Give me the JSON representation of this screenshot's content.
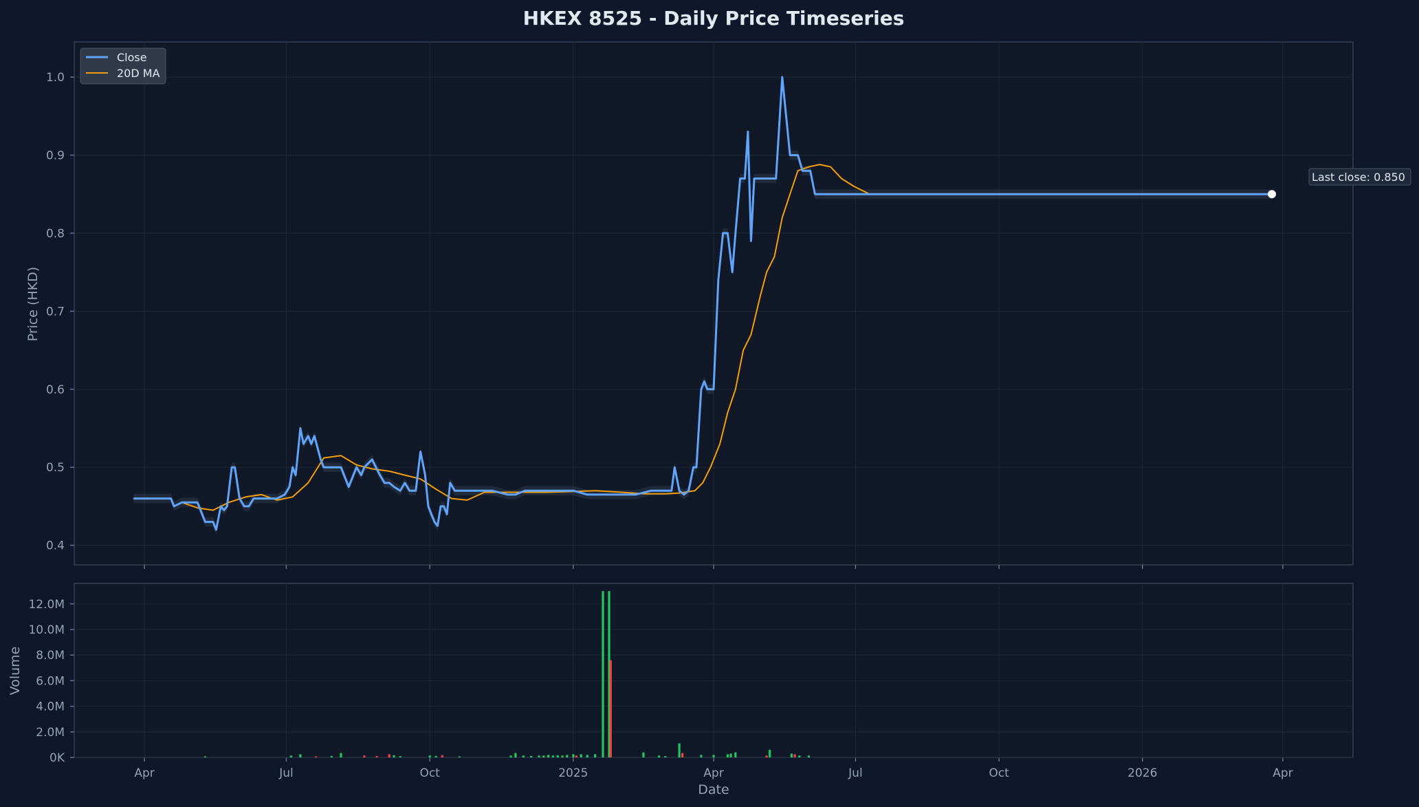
{
  "colors": {
    "background": "#0f172a",
    "panel": "#111827",
    "grid": "#1f2937",
    "close": "#60a5fa",
    "ma": "#f59e0b",
    "range": "#334155",
    "volume_up": "#22c55e",
    "volume_down": "#ef4444"
  },
  "chart_data": [
    {
      "type": "line",
      "title": "HKEX 8525 - Daily Price Timeseries",
      "ylabel": "Price (HKD)",
      "ylim": [
        0.375,
        1.045
      ],
      "yticks": [
        "0.4",
        "0.5",
        "0.6",
        "0.7",
        "0.8",
        "0.9",
        "1.0"
      ],
      "grid": true,
      "legend_position": "top-left",
      "series": [
        {
          "name": "Close",
          "x": [
            "2024-03-25",
            "2024-04-10",
            "2024-04-18",
            "2024-04-20",
            "2024-04-25",
            "2024-05-05",
            "2024-05-08",
            "2024-05-10",
            "2024-05-15",
            "2024-05-17",
            "2024-05-20",
            "2024-05-22",
            "2024-05-24",
            "2024-05-27",
            "2024-05-29",
            "2024-06-01",
            "2024-06-04",
            "2024-06-07",
            "2024-06-10",
            "2024-06-15",
            "2024-06-20",
            "2024-06-25",
            "2024-06-30",
            "2024-07-03",
            "2024-07-05",
            "2024-07-07",
            "2024-07-10",
            "2024-07-12",
            "2024-07-15",
            "2024-07-17",
            "2024-07-19",
            "2024-07-21",
            "2024-07-23",
            "2024-07-25",
            "2024-07-28",
            "2024-07-31",
            "2024-08-05",
            "2024-08-10",
            "2024-08-15",
            "2024-08-18",
            "2024-08-20",
            "2024-08-25",
            "2024-08-30",
            "2024-09-02",
            "2024-09-05",
            "2024-09-08",
            "2024-09-12",
            "2024-09-15",
            "2024-09-18",
            "2024-09-20",
            "2024-09-22",
            "2024-09-25",
            "2024-09-28",
            "2024-09-30",
            "2024-10-02",
            "2024-10-04",
            "2024-10-06",
            "2024-10-08",
            "2024-10-10",
            "2024-10-12",
            "2024-10-14",
            "2024-10-17",
            "2024-10-20",
            "2024-10-22",
            "2024-10-25",
            "2024-11-01",
            "2024-11-10",
            "2024-11-20",
            "2024-11-25",
            "2024-12-01",
            "2024-12-10",
            "2024-12-20",
            "2025-01-01",
            "2025-01-10",
            "2025-01-20",
            "2025-02-01",
            "2025-02-10",
            "2025-02-20",
            "2025-03-01",
            "2025-03-05",
            "2025-03-07",
            "2025-03-10",
            "2025-03-13",
            "2025-03-16",
            "2025-03-19",
            "2025-03-21",
            "2025-03-24",
            "2025-03-26",
            "2025-03-28",
            "2025-04-01",
            "2025-04-04",
            "2025-04-07",
            "2025-04-10",
            "2025-04-13",
            "2025-04-15",
            "2025-04-18",
            "2025-04-21",
            "2025-04-23",
            "2025-04-25",
            "2025-04-27",
            "2025-04-29",
            "2025-05-01",
            "2025-05-04",
            "2025-05-06",
            "2025-05-08",
            "2025-05-11",
            "2025-05-15",
            "2025-05-20",
            "2025-05-25",
            "2025-05-28",
            "2025-05-31",
            "2025-06-02",
            "2025-06-05",
            "2025-06-08",
            "2025-06-11",
            "2025-06-15",
            "2025-06-20",
            "2025-06-25",
            "2025-06-30",
            "2025-07-05",
            "2025-08-01",
            "2025-10-01",
            "2025-12-01",
            "2026-01-01",
            "2026-03-25"
          ],
          "values": [
            0.46,
            0.46,
            0.46,
            0.45,
            0.455,
            0.455,
            0.44,
            0.43,
            0.43,
            0.42,
            0.45,
            0.445,
            0.45,
            0.5,
            0.5,
            0.46,
            0.45,
            0.45,
            0.46,
            0.46,
            0.46,
            0.46,
            0.465,
            0.475,
            0.5,
            0.49,
            0.55,
            0.53,
            0.54,
            0.53,
            0.54,
            0.525,
            0.51,
            0.5,
            0.5,
            0.5,
            0.5,
            0.475,
            0.5,
            0.49,
            0.5,
            0.51,
            0.49,
            0.48,
            0.48,
            0.475,
            0.47,
            0.48,
            0.47,
            0.47,
            0.47,
            0.52,
            0.49,
            0.45,
            0.44,
            0.43,
            0.425,
            0.45,
            0.45,
            0.44,
            0.48,
            0.47,
            0.47,
            0.47,
            0.47,
            0.47,
            0.47,
            0.465,
            0.465,
            0.47,
            0.47,
            0.47,
            0.47,
            0.465,
            0.465,
            0.465,
            0.465,
            0.47,
            0.47,
            0.47,
            0.5,
            0.47,
            0.465,
            0.47,
            0.5,
            0.5,
            0.6,
            0.61,
            0.6,
            0.6,
            0.74,
            0.8,
            0.8,
            0.75,
            0.8,
            0.87,
            0.87,
            0.93,
            0.79,
            0.87,
            0.87,
            0.87,
            0.87,
            0.87,
            0.87,
            0.87,
            1.0,
            0.9,
            0.9,
            0.88,
            0.88,
            0.88,
            0.85,
            0.85,
            0.85,
            0.85,
            0.85,
            0.85,
            0.85,
            0.85,
            0.85,
            0.85,
            0.85,
            0.85,
            0.85
          ]
        },
        {
          "name": "20D MA",
          "x": [
            "2024-04-25",
            "2024-05-05",
            "2024-05-15",
            "2024-05-25",
            "2024-06-05",
            "2024-06-15",
            "2024-06-25",
            "2024-07-05",
            "2024-07-15",
            "2024-07-25",
            "2024-08-05",
            "2024-08-15",
            "2024-08-25",
            "2024-09-05",
            "2024-09-15",
            "2024-09-25",
            "2024-10-05",
            "2024-10-15",
            "2024-10-25",
            "2024-11-05",
            "2024-11-15",
            "2024-12-01",
            "2024-12-15",
            "2025-01-01",
            "2025-01-15",
            "2025-02-01",
            "2025-02-15",
            "2025-03-01",
            "2025-03-10",
            "2025-03-20",
            "2025-03-25",
            "2025-03-30",
            "2025-04-05",
            "2025-04-10",
            "2025-04-15",
            "2025-04-20",
            "2025-04-25",
            "2025-05-01",
            "2025-05-05",
            "2025-05-10",
            "2025-05-15",
            "2025-05-20",
            "2025-05-25",
            "2025-06-01",
            "2025-06-08",
            "2025-06-15",
            "2025-06-22",
            "2025-06-30",
            "2025-07-10",
            "2025-08-01",
            "2025-10-01",
            "2026-01-01",
            "2026-03-25"
          ],
          "values": [
            0.455,
            0.448,
            0.445,
            0.455,
            0.462,
            0.465,
            0.458,
            0.462,
            0.48,
            0.512,
            0.515,
            0.503,
            0.498,
            0.495,
            0.49,
            0.485,
            0.472,
            0.46,
            0.458,
            0.468,
            0.468,
            0.468,
            0.468,
            0.469,
            0.47,
            0.468,
            0.466,
            0.466,
            0.467,
            0.47,
            0.48,
            0.5,
            0.53,
            0.57,
            0.6,
            0.65,
            0.67,
            0.72,
            0.75,
            0.77,
            0.82,
            0.85,
            0.88,
            0.885,
            0.888,
            0.885,
            0.87,
            0.86,
            0.85,
            0.85,
            0.85,
            0.85,
            0.85
          ]
        }
      ],
      "annotation": "Last close: 0.850"
    },
    {
      "type": "bar",
      "ylabel": "Volume",
      "xlabel": "Date",
      "ylim": [
        0,
        13600000
      ],
      "yticks": [
        "0K",
        "2.0M",
        "4.0M",
        "6.0M",
        "8.0M",
        "10.0M",
        "12.0M"
      ],
      "xticks": [
        "Apr",
        "Jul",
        "Oct",
        "2025",
        "Apr",
        "Jul",
        "Oct",
        "2026",
        "Apr"
      ],
      "bars": [
        {
          "x": "2024-05-10",
          "value": 80000,
          "dir": "up"
        },
        {
          "x": "2024-07-04",
          "value": 150000,
          "dir": "up"
        },
        {
          "x": "2024-07-10",
          "value": 250000,
          "dir": "up"
        },
        {
          "x": "2024-07-20",
          "value": 80000,
          "dir": "down"
        },
        {
          "x": "2024-07-30",
          "value": 120000,
          "dir": "up"
        },
        {
          "x": "2024-08-05",
          "value": 350000,
          "dir": "up"
        },
        {
          "x": "2024-08-20",
          "value": 150000,
          "dir": "down"
        },
        {
          "x": "2024-08-28",
          "value": 120000,
          "dir": "down"
        },
        {
          "x": "2024-09-05",
          "value": 250000,
          "dir": "down"
        },
        {
          "x": "2024-09-08",
          "value": 180000,
          "dir": "up"
        },
        {
          "x": "2024-09-12",
          "value": 100000,
          "dir": "up"
        },
        {
          "x": "2024-10-01",
          "value": 150000,
          "dir": "up"
        },
        {
          "x": "2024-10-05",
          "value": 120000,
          "dir": "up"
        },
        {
          "x": "2024-10-09",
          "value": 180000,
          "dir": "down"
        },
        {
          "x": "2024-10-20",
          "value": 80000,
          "dir": "up"
        },
        {
          "x": "2024-11-22",
          "value": 150000,
          "dir": "up"
        },
        {
          "x": "2024-11-25",
          "value": 350000,
          "dir": "up"
        },
        {
          "x": "2024-11-30",
          "value": 150000,
          "dir": "up"
        },
        {
          "x": "2024-12-05",
          "value": 120000,
          "dir": "up"
        },
        {
          "x": "2024-12-10",
          "value": 150000,
          "dir": "up"
        },
        {
          "x": "2024-12-13",
          "value": 150000,
          "dir": "up"
        },
        {
          "x": "2024-12-16",
          "value": 200000,
          "dir": "up"
        },
        {
          "x": "2024-12-19",
          "value": 150000,
          "dir": "up"
        },
        {
          "x": "2024-12-22",
          "value": 180000,
          "dir": "up"
        },
        {
          "x": "2024-12-25",
          "value": 150000,
          "dir": "up"
        },
        {
          "x": "2024-12-28",
          "value": 200000,
          "dir": "up"
        },
        {
          "x": "2025-01-01",
          "value": 250000,
          "dir": "up"
        },
        {
          "x": "2025-01-03",
          "value": 150000,
          "dir": "down"
        },
        {
          "x": "2025-01-06",
          "value": 250000,
          "dir": "up"
        },
        {
          "x": "2025-01-10",
          "value": 200000,
          "dir": "up"
        },
        {
          "x": "2025-01-15",
          "value": 250000,
          "dir": "up"
        },
        {
          "x": "2025-01-20",
          "value": 13000000,
          "dir": "up"
        },
        {
          "x": "2025-01-24",
          "value": 13000000,
          "dir": "up"
        },
        {
          "x": "2025-01-25",
          "value": 7600000,
          "dir": "down"
        },
        {
          "x": "2025-02-15",
          "value": 400000,
          "dir": "up"
        },
        {
          "x": "2025-02-25",
          "value": 150000,
          "dir": "up"
        },
        {
          "x": "2025-03-01",
          "value": 100000,
          "dir": "up"
        },
        {
          "x": "2025-03-10",
          "value": 1100000,
          "dir": "up"
        },
        {
          "x": "2025-03-12",
          "value": 350000,
          "dir": "down"
        },
        {
          "x": "2025-03-24",
          "value": 200000,
          "dir": "up"
        },
        {
          "x": "2025-04-01",
          "value": 200000,
          "dir": "up"
        },
        {
          "x": "2025-04-10",
          "value": 250000,
          "dir": "up"
        },
        {
          "x": "2025-04-12",
          "value": 300000,
          "dir": "up"
        },
        {
          "x": "2025-04-15",
          "value": 400000,
          "dir": "up"
        },
        {
          "x": "2025-05-05",
          "value": 150000,
          "dir": "down"
        },
        {
          "x": "2025-05-07",
          "value": 600000,
          "dir": "up"
        },
        {
          "x": "2025-05-21",
          "value": 300000,
          "dir": "up"
        },
        {
          "x": "2025-05-23",
          "value": 250000,
          "dir": "down"
        },
        {
          "x": "2025-05-26",
          "value": 150000,
          "dir": "up"
        },
        {
          "x": "2025-06-01",
          "value": 150000,
          "dir": "up"
        }
      ]
    }
  ]
}
